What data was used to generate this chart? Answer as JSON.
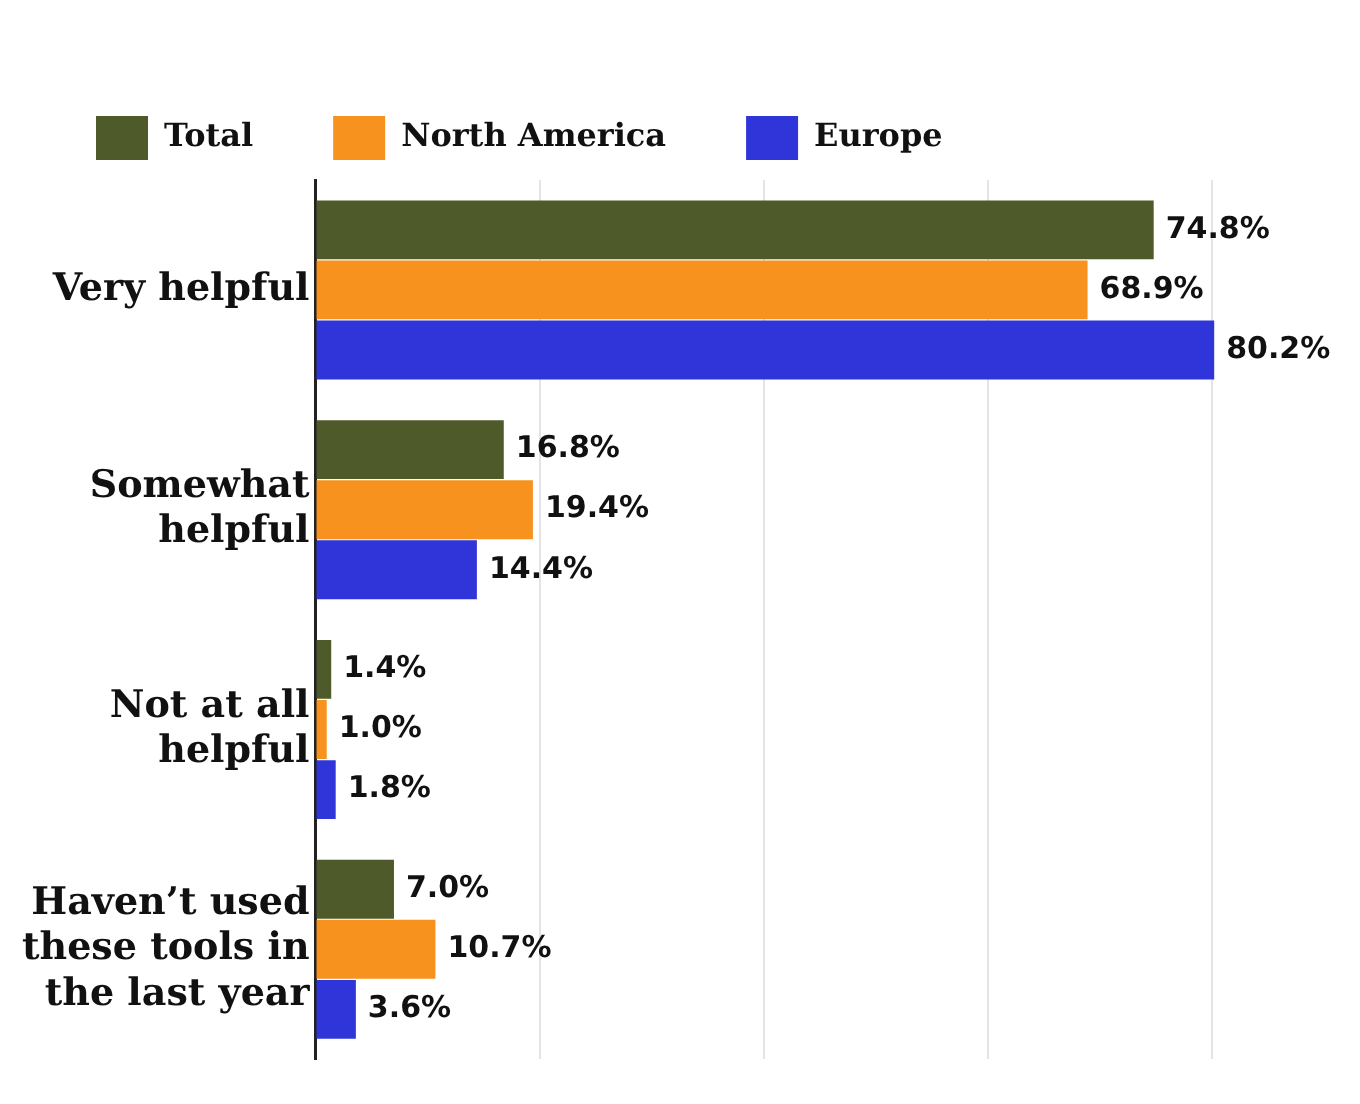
{
  "chart_data": {
    "type": "bar",
    "orientation": "horizontal",
    "categories": [
      "Very helpful",
      "Somewhat helpful",
      "Not at all helpful",
      "Haven’t used these tools in the last year"
    ],
    "series": [
      {
        "name": "Total",
        "color": "#4f5a2a",
        "values": [
          74.8,
          16.8,
          1.4,
          7.0
        ],
        "value_labels": [
          "74.8%",
          "16.8%",
          "1.4%",
          "7.0%"
        ]
      },
      {
        "name": "North America",
        "color": "#f7921e",
        "values": [
          68.9,
          19.4,
          1.0,
          10.7
        ],
        "value_labels": [
          "68.9%",
          "19.4%",
          "1.0%",
          "10.7%"
        ]
      },
      {
        "name": "Europe",
        "color": "#2f35d8",
        "values": [
          80.2,
          14.4,
          1.8,
          3.6
        ],
        "value_labels": [
          "80.2%",
          "14.4%",
          "1.8%",
          "3.6%"
        ]
      }
    ],
    "xticks": [
      {
        "value": 0,
        "label": null
      },
      {
        "value": 20,
        "label": null
      },
      {
        "value": 40,
        "label": null
      },
      {
        "value": 60,
        "label": null
      },
      {
        "value": 80,
        "label": null
      }
    ],
    "grid": "x",
    "legend": "top left",
    "tick_labels": "y"
  }
}
